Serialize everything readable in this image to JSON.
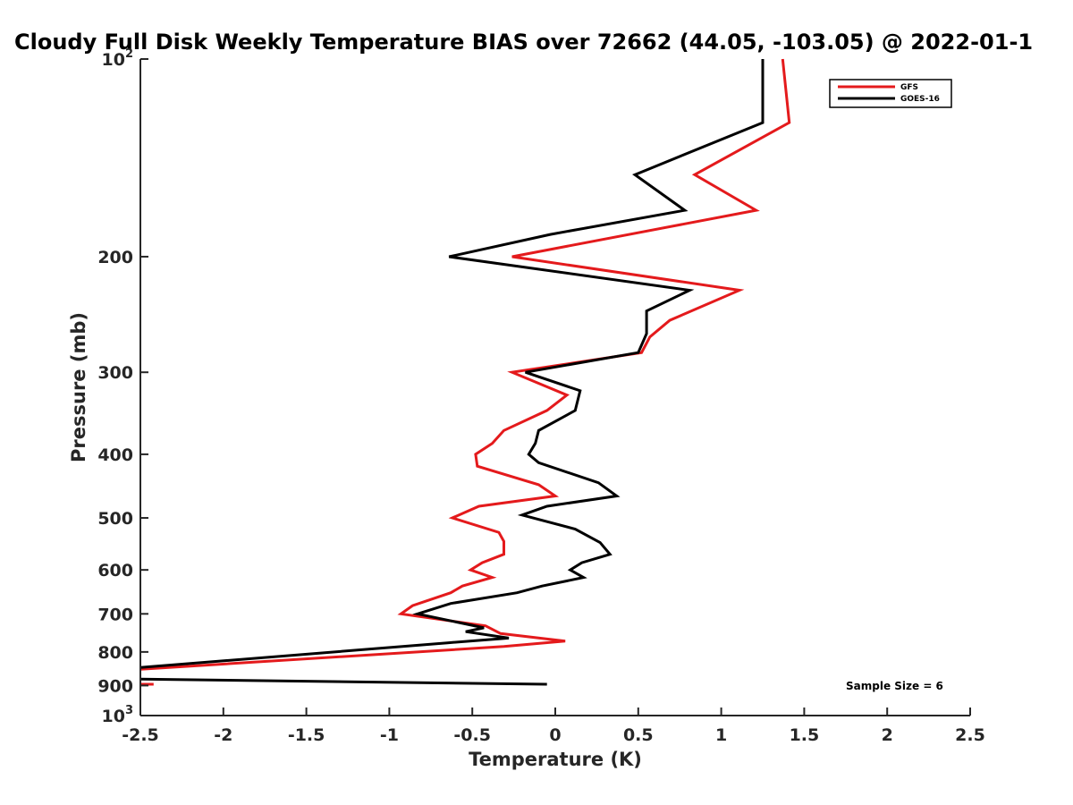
{
  "chart_data": {
    "type": "line",
    "title": "Cloudy Full Disk Weekly Temperature BIAS over 72662 (44.05, -103.05) @ 2022-01-1",
    "xlabel": "Temperature (K)",
    "ylabel": "Pressure (mb)",
    "xlim": [
      -2.5,
      2.5
    ],
    "ylim": [
      100,
      1000
    ],
    "yscale": "log",
    "y_reversed": true,
    "xticks": [
      -2.5,
      -2,
      -1.5,
      -1,
      -0.5,
      0,
      0.5,
      1,
      1.5,
      2,
      2.5
    ],
    "xtick_labels": [
      "-2.5",
      "-2",
      "-1.5",
      "-1",
      "-0.5",
      "0",
      "0.5",
      "1",
      "1.5",
      "2",
      "2.5"
    ],
    "yticks": [
      100,
      200,
      300,
      400,
      500,
      600,
      700,
      800,
      900,
      1000
    ],
    "ytick_labels": [
      {
        "base": "10",
        "exp": "2"
      },
      {
        "base": "200",
        "exp": ""
      },
      {
        "base": "300",
        "exp": ""
      },
      {
        "base": "400",
        "exp": ""
      },
      {
        "base": "500",
        "exp": ""
      },
      {
        "base": "600",
        "exp": ""
      },
      {
        "base": "700",
        "exp": ""
      },
      {
        "base": "800",
        "exp": ""
      },
      {
        "base": "900",
        "exp": ""
      },
      {
        "base": "10",
        "exp": "3"
      }
    ],
    "grid": false,
    "legend_position": "top-right",
    "annotation": "Sample Size = 6",
    "series": [
      {
        "name": "GFS",
        "color": "#e41a1c",
        "points": [
          [
            1.37,
            100
          ],
          [
            1.41,
            125
          ],
          [
            0.84,
            150
          ],
          [
            1.21,
            170
          ],
          [
            -0.26,
            200
          ],
          [
            1.11,
            225
          ],
          [
            0.69,
            250
          ],
          [
            0.57,
            265
          ],
          [
            0.52,
            280
          ],
          [
            -0.26,
            300
          ],
          [
            0.07,
            325
          ],
          [
            -0.05,
            343
          ],
          [
            -0.31,
            368
          ],
          [
            -0.38,
            385
          ],
          [
            -0.48,
            400
          ],
          [
            -0.47,
            417
          ],
          [
            -0.1,
            445
          ],
          [
            0.0,
            463
          ],
          [
            -0.46,
            480
          ],
          [
            -0.62,
            500
          ],
          [
            -0.34,
            526
          ],
          [
            -0.31,
            543
          ],
          [
            -0.31,
            568
          ],
          [
            -0.44,
            585
          ],
          [
            -0.51,
            600
          ],
          [
            -0.38,
            616
          ],
          [
            -0.56,
            635
          ],
          [
            -0.63,
            650
          ],
          [
            -0.86,
            680
          ],
          [
            -0.93,
            700
          ],
          [
            -0.42,
            730
          ],
          [
            -0.33,
            750
          ],
          [
            0.06,
            770
          ],
          [
            -0.31,
            785
          ],
          [
            -2.5,
            850
          ]
        ],
        "extra_segment": [
          [
            -2.5,
            896
          ],
          [
            -2.42,
            896
          ]
        ]
      },
      {
        "name": "GOES-16",
        "color": "#000000",
        "points": [
          [
            1.25,
            100
          ],
          [
            1.25,
            125
          ],
          [
            0.48,
            150
          ],
          [
            0.78,
            170
          ],
          [
            -0.03,
            185
          ],
          [
            -0.64,
            200
          ],
          [
            0.81,
            225
          ],
          [
            0.55,
            242
          ],
          [
            0.55,
            262
          ],
          [
            0.5,
            280
          ],
          [
            -0.18,
            300
          ],
          [
            0.15,
            320
          ],
          [
            0.12,
            343
          ],
          [
            -0.1,
            368
          ],
          [
            -0.12,
            385
          ],
          [
            -0.16,
            400
          ],
          [
            -0.1,
            412
          ],
          [
            0.26,
            442
          ],
          [
            0.37,
            463
          ],
          [
            -0.05,
            480
          ],
          [
            -0.2,
            495
          ],
          [
            0.12,
            520
          ],
          [
            0.27,
            545
          ],
          [
            0.33,
            568
          ],
          [
            0.16,
            585
          ],
          [
            0.09,
            600
          ],
          [
            0.17,
            616
          ],
          [
            -0.08,
            635
          ],
          [
            -0.23,
            650
          ],
          [
            -0.63,
            675
          ],
          [
            -0.83,
            700
          ],
          [
            -0.43,
            735
          ],
          [
            -0.54,
            745
          ],
          [
            -0.28,
            762
          ],
          [
            -0.65,
            775
          ],
          [
            -2.5,
            845
          ]
        ],
        "extra_segment": [
          [
            -2.5,
            880
          ],
          [
            -0.05,
            896
          ]
        ]
      }
    ]
  }
}
